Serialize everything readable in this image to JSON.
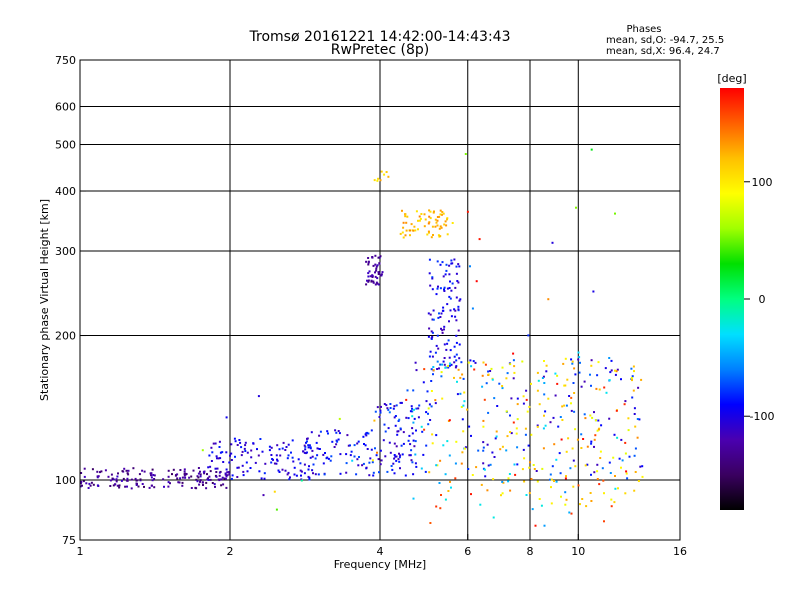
{
  "chart_data": {
    "type": "scatter",
    "title": "Tromsø 20161221 14:42:00-14:43:43",
    "subtitle": "RwPretec (8p)",
    "xlabel": "Frequency [MHz]",
    "ylabel": "Stationary phase Virtual Height [km]",
    "x_scale": "log",
    "y_scale": "log",
    "xlim": [
      1,
      16
    ],
    "ylim": [
      75,
      750
    ],
    "x_ticks": [
      "1",
      "2",
      "4",
      "6",
      "8",
      "10",
      "16"
    ],
    "x_tick_values": [
      1,
      2,
      4,
      6,
      8,
      10,
      16
    ],
    "y_ticks": [
      "75",
      "100",
      "200",
      "300",
      "400",
      "500",
      "600",
      "750"
    ],
    "y_tick_values": [
      75,
      100,
      200,
      300,
      400,
      500,
      600,
      750
    ],
    "grid": true,
    "stats": {
      "heading": "Phases",
      "line_o": "mean, sd,O: -94.7, 25.5",
      "line_x": "mean, sd,X:  96.4, 24.7"
    },
    "colorbar": {
      "label": "[deg]",
      "ticks": [
        "100",
        "0",
        "-100"
      ],
      "tick_values": [
        100,
        0,
        -100
      ],
      "range": [
        -180,
        180
      ],
      "colors": [
        "#000000",
        "#3a0060",
        "#4a00b0",
        "#0000ff",
        "#0080ff",
        "#00e0ff",
        "#00ff80",
        "#00e000",
        "#a0ff00",
        "#ffff00",
        "#ffc000",
        "#ff6000",
        "#ff0000"
      ]
    },
    "clusters": [
      {
        "name": "low-1-2MHz",
        "f": [
          1.0,
          2.0
        ],
        "h": [
          96,
          106
        ],
        "phase": [
          -150,
          -110
        ],
        "n": 170
      },
      {
        "name": "low-2-3MHz",
        "f": [
          1.8,
          3.0
        ],
        "h": [
          100,
          122
        ],
        "phase": [
          -120,
          -80
        ],
        "n": 130
      },
      {
        "name": "low-3-4.8MHz",
        "f": [
          2.8,
          4.8
        ],
        "h": [
          102,
          128
        ],
        "phase": [
          -120,
          -70
        ],
        "n": 140
      },
      {
        "name": "band-4-5MHz",
        "f": [
          3.9,
          5.0
        ],
        "h": [
          128,
          145
        ],
        "phase": [
          -120,
          -60
        ],
        "n": 40
      },
      {
        "name": "cusp-4MHz",
        "f": [
          3.75,
          4.05
        ],
        "h": [
          255,
          295
        ],
        "phase": [
          -140,
          -110
        ],
        "n": 50
      },
      {
        "name": "cusp-5.7MHz",
        "f": [
          5.0,
          5.8
        ],
        "h": [
          170,
          290
        ],
        "phase": [
          -120,
          -70
        ],
        "n": 110
      },
      {
        "name": "x-trace-5MHz",
        "f": [
          4.4,
          5.6
        ],
        "h": [
          320,
          365
        ],
        "phase": [
          100,
          140
        ],
        "n": 70
      },
      {
        "name": "x-top-4MHz",
        "f": [
          3.9,
          4.2
        ],
        "h": [
          420,
          440
        ],
        "phase": [
          95,
          130
        ],
        "n": 8
      },
      {
        "name": "spread-blue",
        "f": [
          4.5,
          13.5
        ],
        "h": [
          100,
          180
        ],
        "phase": [
          -120,
          -60
        ],
        "n": 150
      },
      {
        "name": "spread-yellow",
        "f": [
          5.0,
          13.5
        ],
        "h": [
          88,
          180
        ],
        "phase": [
          80,
          140
        ],
        "n": 170
      },
      {
        "name": "spread-cyan",
        "f": [
          4.5,
          13.0
        ],
        "h": [
          80,
          180
        ],
        "phase": [
          -60,
          -20
        ],
        "n": 60
      },
      {
        "name": "spread-red",
        "f": [
          4.5,
          13.0
        ],
        "h": [
          78,
          200
        ],
        "phase": [
          150,
          180
        ],
        "n": 35
      },
      {
        "name": "sparse-high",
        "f": [
          5.5,
          12.5
        ],
        "h": [
          180,
          490
        ],
        "phase": [
          -120,
          180
        ],
        "n": 15
      },
      {
        "name": "low-isolated",
        "f": [
          1.5,
          4.0
        ],
        "h": [
          78,
          150
        ],
        "phase": [
          -120,
          180
        ],
        "n": 12
      }
    ]
  }
}
